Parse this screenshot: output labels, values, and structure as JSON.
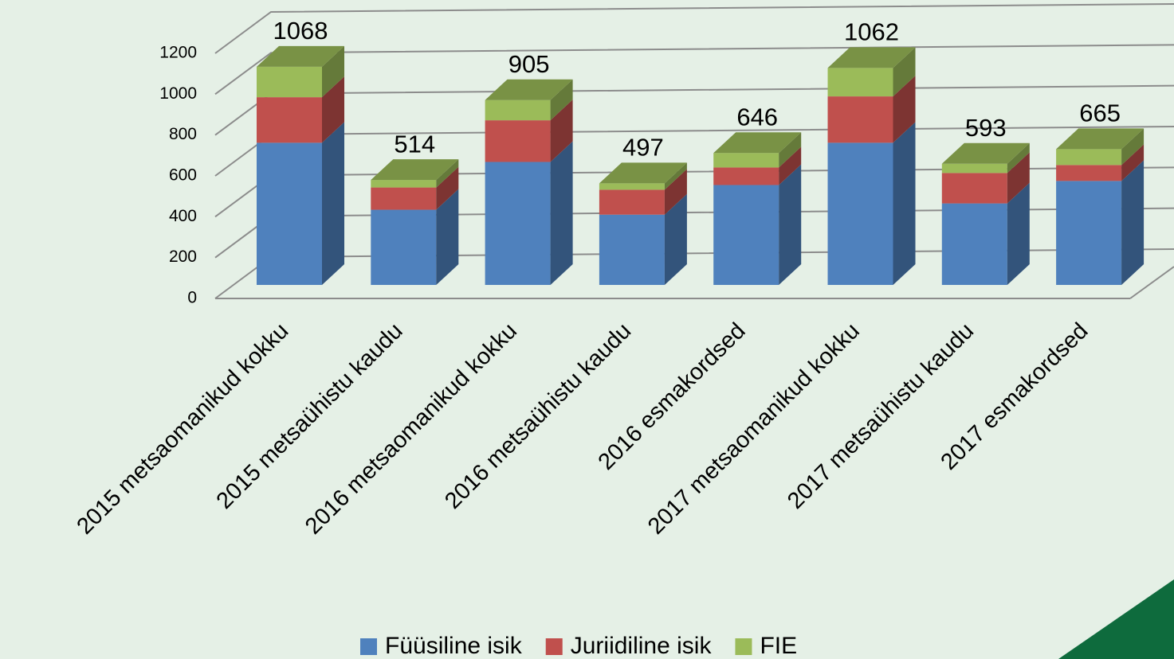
{
  "chart_data": {
    "type": "bar3d_stacked",
    "categories": [
      "2015 metsaomanikud kokku",
      "2015 metsaühistu kaudu",
      "2016 metsaomanikud kokku",
      "2016 metsaühistu kaudu",
      "2016 esmakordsed",
      "2017 metsaomanikud kokku",
      "2017 metsaühistu kaudu",
      "2017 esmakordsed"
    ],
    "series": [
      {
        "name": "Füüsiline isik",
        "color": "#4f81bd",
        "values": [
          696,
          368,
          602,
          344,
          489,
          696,
          399,
          509
        ]
      },
      {
        "name": "Juriidiline isik",
        "color": "#c0504d",
        "values": [
          223,
          109,
          204,
          122,
          86,
          227,
          149,
          78
        ]
      },
      {
        "name": "FIE",
        "color": "#9bbb59",
        "values": [
          149,
          37,
          99,
          31,
          71,
          139,
          45,
          78
        ]
      }
    ],
    "totals": [
      1068,
      514,
      905,
      497,
      646,
      1062,
      593,
      665
    ],
    "ylim": [
      0,
      1200
    ],
    "yticks": [
      0,
      200,
      400,
      600,
      800,
      1000,
      1200
    ],
    "grid": true,
    "legend": "bottom"
  }
}
